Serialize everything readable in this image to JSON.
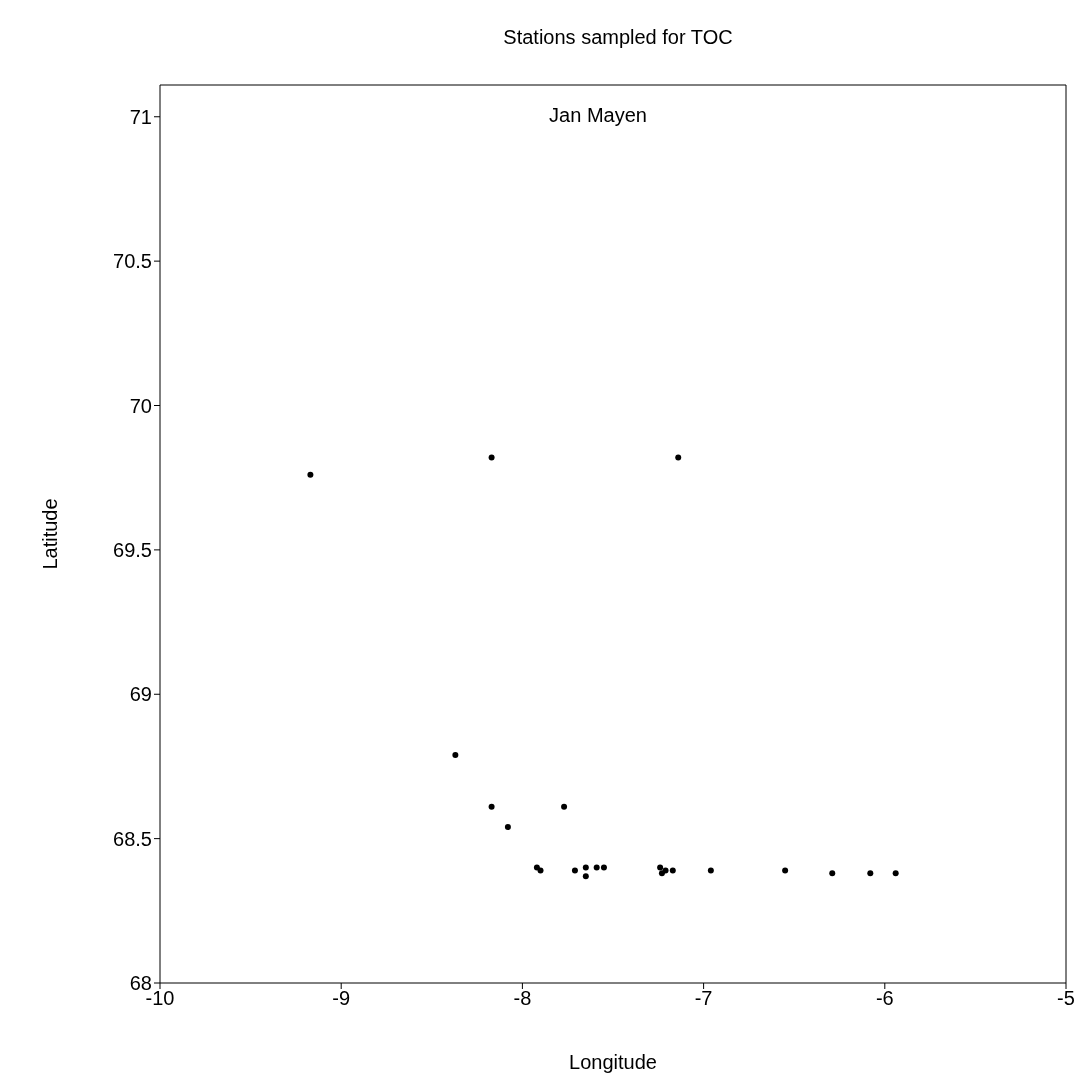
{
  "chart_data": {
    "type": "scatter",
    "title": "Stations sampled for TOC",
    "xlabel": "Longitude",
    "ylabel": "Latitude",
    "annotations": [
      "Jan Mayen"
    ],
    "x": [
      -9.17,
      -8.17,
      -7.14,
      -8.37,
      -8.17,
      -7.77,
      -8.08,
      -7.92,
      -7.9,
      -7.71,
      -7.65,
      -7.65,
      -7.59,
      -7.55,
      -7.24,
      -7.23,
      -7.21,
      -7.17,
      -6.96,
      -6.55,
      -6.29,
      -6.08,
      -5.94
    ],
    "series": [
      {
        "color": "#000000",
        "values": [
          69.76,
          69.82,
          69.82,
          68.79,
          68.61,
          68.61,
          68.54,
          68.4,
          68.39,
          68.39,
          68.4,
          68.37,
          68.4,
          68.4,
          68.4,
          68.38,
          68.39,
          68.39,
          68.39,
          68.39,
          68.38,
          68.38,
          68.38
        ]
      }
    ],
    "xlim": [
      -10,
      -5
    ],
    "ylim": [
      68,
      71.11
    ],
    "xticks": [
      -10,
      -9,
      -8,
      -7,
      -6,
      -5
    ],
    "yticks": [
      68,
      68.5,
      69,
      69.5,
      70,
      70.5,
      71
    ],
    "marker": "circle",
    "grid": false
  }
}
